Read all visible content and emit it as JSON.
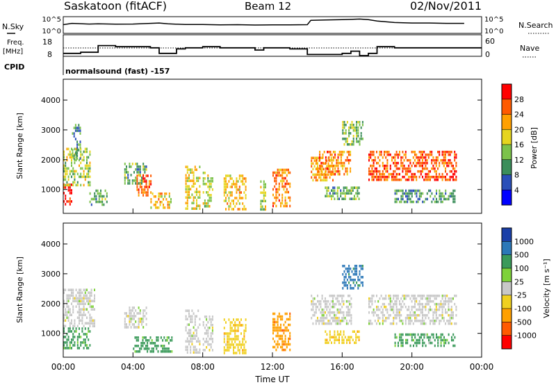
{
  "header": {
    "station": "Saskatoon (fitACF)",
    "beam": "Beam 12",
    "date": "02/Nov/2011"
  },
  "noise_panel": {
    "left_label": "N.Sky",
    "right_label": "N.Search",
    "left_ticks": [
      "10^5",
      "10^0"
    ],
    "right_ticks": [
      "10^5",
      "10^0"
    ],
    "series": [
      {
        "x": [
          0.0,
          0.5,
          1.0,
          1.5,
          2.0,
          3.0,
          4.0,
          5.0,
          5.5,
          6.0,
          7.0,
          8.0,
          9.0,
          10.0,
          11.0,
          12.0,
          13.0,
          14.0,
          14.2,
          15.0,
          16.0,
          17.0,
          17.5,
          18.0,
          19.0,
          20.0,
          21.0,
          22.0,
          23.0
        ],
        "y": [
          0.52,
          0.6,
          0.58,
          0.56,
          0.57,
          0.55,
          0.56,
          0.6,
          0.62,
          0.57,
          0.53,
          0.53,
          0.51,
          0.52,
          0.5,
          0.51,
          0.51,
          0.52,
          0.78,
          0.8,
          0.82,
          0.86,
          0.82,
          0.74,
          0.65,
          0.62,
          0.62,
          0.6,
          0.6
        ]
      }
    ]
  },
  "freq_panel": {
    "left_label": "Freq.",
    "left_unit": "[MHz]",
    "right_label": "Nave",
    "left_ticks": [
      18,
      8
    ],
    "right_ticks": [
      60,
      0
    ],
    "series": [
      {
        "x": [
          0.0,
          0.8,
          1.0,
          2.0,
          3.0,
          5.0,
          5.5,
          6.0,
          6.5,
          7.0,
          8.0,
          9.0,
          10.0,
          11.0,
          11.5,
          12.0,
          13.0,
          14.0,
          15.0,
          16.0,
          16.5,
          17.0,
          17.5,
          18.0,
          19.0,
          20.0,
          21.0,
          22.0,
          23.0
        ],
        "y": [
          10,
          10,
          11,
          17,
          16,
          15,
          10,
          10,
          14,
          15,
          16,
          15,
          15,
          13,
          15,
          15,
          14,
          9,
          9,
          10,
          12,
          8,
          10,
          16,
          15,
          15,
          15,
          15,
          15
        ]
      }
    ]
  },
  "cpid": {
    "label": "CPID",
    "value": "normalsound (fast) -157"
  },
  "chart_data": [
    {
      "type": "heatmap",
      "quantity": "power",
      "ylabel": "Slant Range [km]",
      "yticks": [
        1000,
        2000,
        3000,
        4000
      ],
      "ylim": [
        200,
        4700
      ],
      "colorbar": {
        "label": "Power [dB]",
        "ticks": [
          4,
          8,
          12,
          16,
          20,
          24,
          28
        ],
        "colors": [
          "#0000ff",
          "#2a4fb8",
          "#3b8e5a",
          "#7cc24a",
          "#e6d51e",
          "#ffa000",
          "#ff5a00",
          "#ff0000"
        ]
      },
      "regions": [
        {
          "t": [
            0.0,
            0.5
          ],
          "r": [
            500,
            1200
          ],
          "level": 28
        },
        {
          "t": [
            0.0,
            1.5
          ],
          "r": [
            1100,
            2400
          ],
          "level": 14
        },
        {
          "t": [
            0.5,
            1.0
          ],
          "r": [
            2000,
            3200
          ],
          "level": 8
        },
        {
          "t": [
            1.5,
            2.5
          ],
          "r": [
            500,
            1000
          ],
          "level": 10
        },
        {
          "t": [
            3.5,
            4.8
          ],
          "r": [
            1200,
            1900
          ],
          "level": 10
        },
        {
          "t": [
            4.2,
            5.0
          ],
          "r": [
            800,
            1500
          ],
          "level": 24
        },
        {
          "t": [
            5.0,
            6.2
          ],
          "r": [
            400,
            900
          ],
          "level": 18
        },
        {
          "t": [
            7.0,
            7.8
          ],
          "r": [
            400,
            1800
          ],
          "level": 16
        },
        {
          "t": [
            8.0,
            8.6
          ],
          "r": [
            400,
            1600
          ],
          "level": 14
        },
        {
          "t": [
            9.2,
            10.5
          ],
          "r": [
            300,
            1500
          ],
          "level": 18
        },
        {
          "t": [
            11.3,
            11.6
          ],
          "r": [
            300,
            1400
          ],
          "level": 14
        },
        {
          "t": [
            12.0,
            13.0
          ],
          "r": [
            400,
            1700
          ],
          "level": 22
        },
        {
          "t": [
            14.2,
            15.5
          ],
          "r": [
            1300,
            2100
          ],
          "level": 20
        },
        {
          "t": [
            14.5,
            16.5
          ],
          "r": [
            1500,
            2300
          ],
          "level": 22
        },
        {
          "t": [
            15.0,
            17.0
          ],
          "r": [
            700,
            1100
          ],
          "level": 10
        },
        {
          "t": [
            16.0,
            17.2
          ],
          "r": [
            2500,
            3300
          ],
          "level": 12
        },
        {
          "t": [
            17.5,
            22.5
          ],
          "r": [
            1300,
            2300
          ],
          "level": 24
        },
        {
          "t": [
            19.0,
            22.5
          ],
          "r": [
            600,
            1000
          ],
          "level": 8
        }
      ]
    },
    {
      "type": "heatmap",
      "quantity": "velocity",
      "ylabel": "Slant Range [km]",
      "yticks": [
        1000,
        2000,
        3000,
        4000
      ],
      "ylim": [
        200,
        4700
      ],
      "xlabel": "Time UT",
      "xticks": [
        "00:00",
        "04:00",
        "08:00",
        "12:00",
        "16:00",
        "20:00",
        "00:00"
      ],
      "xlim": [
        0,
        24
      ],
      "colorbar": {
        "label": "Velocity [m s⁻¹]",
        "ticks": [
          1000,
          500,
          100,
          25,
          -25,
          -100,
          -500,
          -1000
        ],
        "colors": [
          "#1a3fa8",
          "#2c78b8",
          "#3a9a5a",
          "#7ed23a",
          "#c8c8c8",
          "#f0d020",
          "#ffa000",
          "#ff5a00",
          "#ff0000"
        ]
      },
      "regions": [
        {
          "t": [
            0.0,
            1.5
          ],
          "r": [
            500,
            1200
          ],
          "level": 100
        },
        {
          "t": [
            0.0,
            1.8
          ],
          "r": [
            1200,
            2500
          ],
          "level": 0
        },
        {
          "t": [
            3.5,
            4.8
          ],
          "r": [
            1200,
            1900
          ],
          "level": 0
        },
        {
          "t": [
            4.0,
            6.2
          ],
          "r": [
            400,
            900
          ],
          "level": 100
        },
        {
          "t": [
            7.0,
            7.8
          ],
          "r": [
            400,
            1800
          ],
          "level": 0
        },
        {
          "t": [
            8.0,
            8.6
          ],
          "r": [
            400,
            1600
          ],
          "level": 0
        },
        {
          "t": [
            9.2,
            10.5
          ],
          "r": [
            300,
            1500
          ],
          "level": -100
        },
        {
          "t": [
            12.0,
            13.0
          ],
          "r": [
            400,
            1700
          ],
          "level": -500
        },
        {
          "t": [
            14.2,
            16.5
          ],
          "r": [
            1300,
            2300
          ],
          "level": 0
        },
        {
          "t": [
            15.0,
            17.0
          ],
          "r": [
            700,
            1100
          ],
          "level": -100
        },
        {
          "t": [
            16.0,
            17.2
          ],
          "r": [
            2500,
            3300
          ],
          "level": 500
        },
        {
          "t": [
            17.5,
            22.5
          ],
          "r": [
            1300,
            2300
          ],
          "level": 0
        },
        {
          "t": [
            19.0,
            22.5
          ],
          "r": [
            600,
            1000
          ],
          "level": 100
        }
      ]
    }
  ]
}
